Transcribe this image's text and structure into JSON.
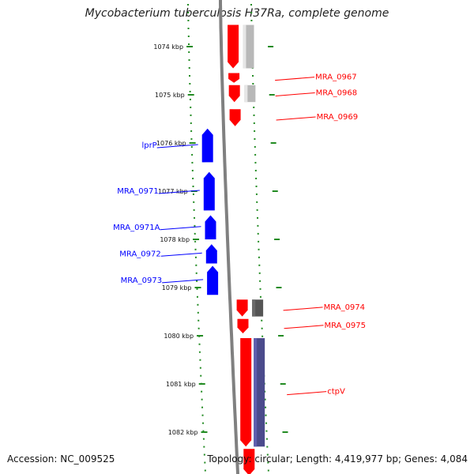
{
  "title": "Mycobacterium tuberculosis H37Ra, complete genome",
  "footer": {
    "accession": "Accession: NC_009525",
    "summary": "Topology: circular; Length: 4,419,977 bp; Genes: 4,084"
  },
  "ruler": {
    "unit": "kbp",
    "ticks": [
      "1074 kbp",
      "1075 kbp",
      "1076 kbp",
      "1077 kbp",
      "1078 kbp",
      "1079 kbp",
      "1080 kbp",
      "1081 kbp",
      "1082 kbp"
    ]
  },
  "colors": {
    "forward_strand": "#ff0000",
    "reverse_strand": "#0000ff",
    "ruler_dots": "#228b22",
    "backbone": "#808080",
    "feature_light_gray": "#b8b8b8",
    "feature_dark_gray": "#555555",
    "feature_slate": "#4b4b8c"
  },
  "genes": [
    {
      "name": "",
      "strand": "forward",
      "start_kbp": 1073.55,
      "end_kbp": 1074.45
    },
    {
      "name": "MRA_0967",
      "strand": "forward",
      "start_kbp": 1074.55,
      "end_kbp": 1074.75
    },
    {
      "name": "MRA_0968",
      "strand": "forward",
      "start_kbp": 1074.8,
      "end_kbp": 1075.15
    },
    {
      "name": "MRA_0969",
      "strand": "forward",
      "start_kbp": 1075.3,
      "end_kbp": 1075.65
    },
    {
      "name": "lprP",
      "strand": "reverse",
      "start_kbp": 1075.7,
      "end_kbp": 1076.4
    },
    {
      "name": "MRA_0971",
      "strand": "reverse",
      "start_kbp": 1076.6,
      "end_kbp": 1077.4
    },
    {
      "name": "MRA_0971A",
      "strand": "reverse",
      "start_kbp": 1077.5,
      "end_kbp": 1078.0
    },
    {
      "name": "MRA_0972",
      "strand": "reverse",
      "start_kbp": 1078.1,
      "end_kbp": 1078.5
    },
    {
      "name": "MRA_0973",
      "strand": "reverse",
      "start_kbp": 1078.55,
      "end_kbp": 1079.15
    },
    {
      "name": "MRA_0974",
      "strand": "forward",
      "start_kbp": 1079.25,
      "end_kbp": 1079.6
    },
    {
      "name": "MRA_0975",
      "strand": "forward",
      "start_kbp": 1079.65,
      "end_kbp": 1079.95
    },
    {
      "name": "ctpV",
      "strand": "forward",
      "start_kbp": 1080.05,
      "end_kbp": 1082.3
    },
    {
      "name": "",
      "strand": "forward",
      "start_kbp": 1082.35,
      "end_kbp": 1082.9
    }
  ],
  "features": [
    {
      "color": "feature_light_gray",
      "start_kbp": 1073.55,
      "end_kbp": 1074.45
    },
    {
      "color": "feature_light_gray",
      "start_kbp": 1074.8,
      "end_kbp": 1075.15
    },
    {
      "color": "feature_dark_gray",
      "start_kbp": 1079.25,
      "end_kbp": 1079.6
    },
    {
      "color": "feature_slate",
      "start_kbp": 1080.05,
      "end_kbp": 1082.3
    }
  ]
}
